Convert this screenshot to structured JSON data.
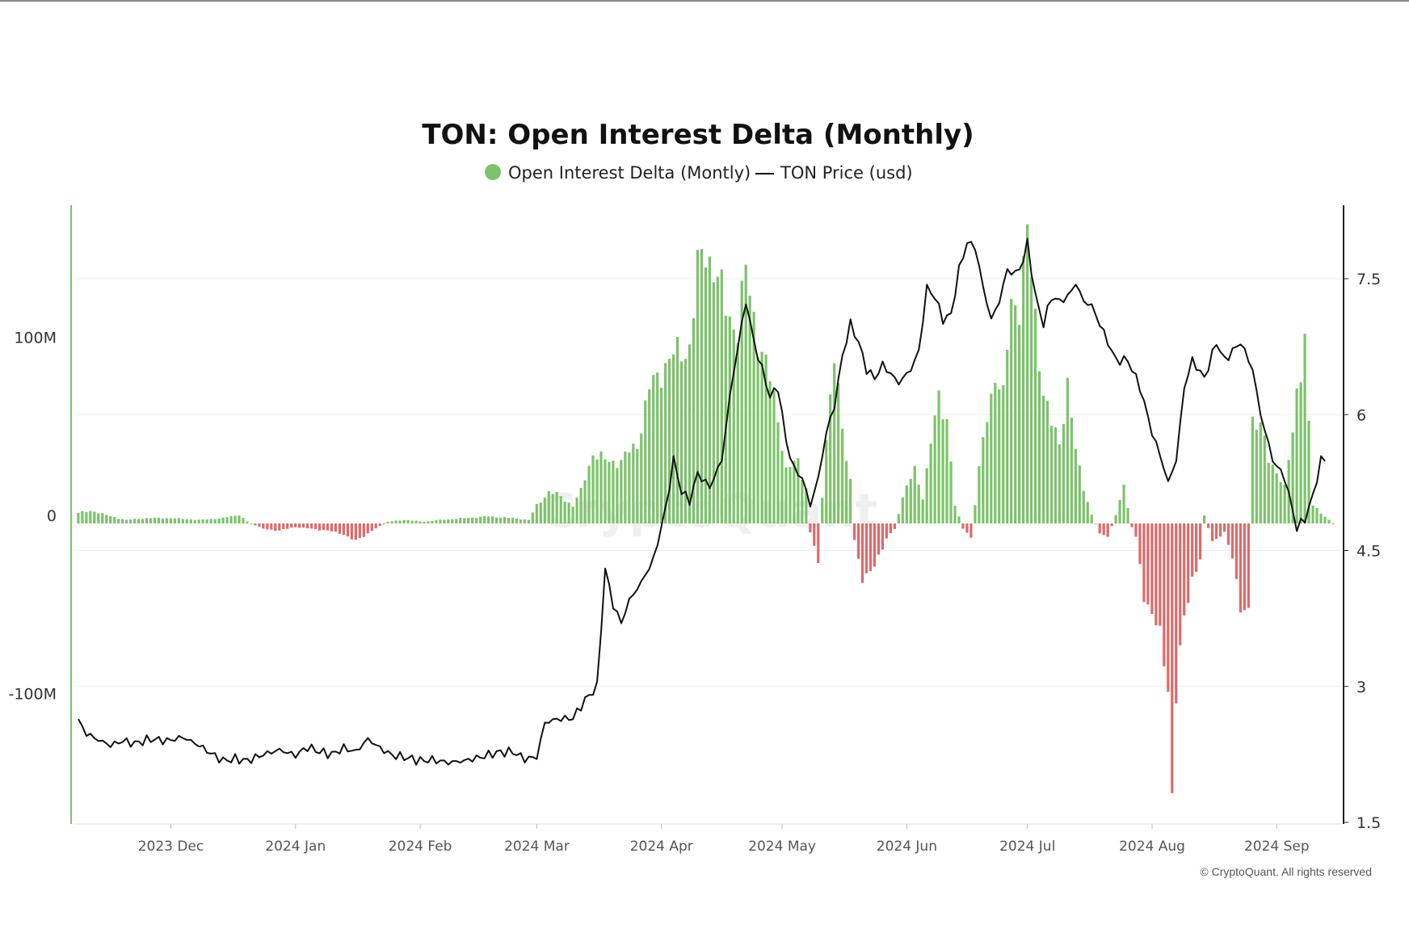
{
  "chart_data": {
    "type": "bar+line",
    "title": "TON: Open Interest Delta (Monthly)",
    "legend": [
      {
        "label": "Open Interest Delta (Montly)",
        "marker": "dot",
        "color": "#7cc36a"
      },
      {
        "label": "TON Price (usd)",
        "marker": "line",
        "color": "#111111"
      }
    ],
    "legend_position": "top-center",
    "x_start": "2023-11-08",
    "x_end": "2024-09-15",
    "x_ticks": [
      {
        "date": "2023-12-01",
        "label": "2023 Dec"
      },
      {
        "date": "2024-01-01",
        "label": "2024 Jan"
      },
      {
        "date": "2024-02-01",
        "label": "2024 Feb"
      },
      {
        "date": "2024-03-01",
        "label": "2024 Mar"
      },
      {
        "date": "2024-04-01",
        "label": "2024 Apr"
      },
      {
        "date": "2024-05-01",
        "label": "2024 May"
      },
      {
        "date": "2024-06-01",
        "label": "2024 Jun"
      },
      {
        "date": "2024-07-01",
        "label": "2024 Jul"
      },
      {
        "date": "2024-08-01",
        "label": "2024 Aug"
      },
      {
        "date": "2024-09-01",
        "label": "2024 Sep"
      }
    ],
    "left_axis": {
      "ylim": [
        -170,
        170
      ],
      "unit": "M",
      "ticks": [
        {
          "value": 100,
          "label": "100M"
        },
        {
          "value": 0,
          "label": "0"
        },
        {
          "value": -100,
          "label": "-100M"
        }
      ]
    },
    "right_axis": {
      "ylim": [
        1.5,
        8.3
      ],
      "ticks": [
        {
          "value": 7.5,
          "label": "7.5"
        },
        {
          "value": 6,
          "label": "6"
        },
        {
          "value": 4.5,
          "label": "4.5"
        },
        {
          "value": 3,
          "label": "3"
        },
        {
          "value": 1.5,
          "label": "1.5"
        }
      ]
    },
    "series": [
      {
        "name": "Open Interest Delta (Montly)",
        "axis": "left",
        "type": "bar",
        "color_positive": "#7cc36a",
        "color_negative": "#e06868",
        "anchors": [
          [
            "2023-11-08",
            6
          ],
          [
            "2023-11-12",
            7
          ],
          [
            "2023-11-16",
            4
          ],
          [
            "2023-11-20",
            2
          ],
          [
            "2023-11-25",
            3
          ],
          [
            "2023-12-01",
            3
          ],
          [
            "2023-12-08",
            2
          ],
          [
            "2023-12-14",
            3
          ],
          [
            "2023-12-18",
            5
          ],
          [
            "2023-12-20",
            1
          ],
          [
            "2023-12-24",
            -3
          ],
          [
            "2023-12-28",
            -4
          ],
          [
            "2024-01-01",
            -2
          ],
          [
            "2024-01-05",
            -3
          ],
          [
            "2024-01-09",
            -4
          ],
          [
            "2024-01-13",
            -6
          ],
          [
            "2024-01-16",
            -10
          ],
          [
            "2024-01-20",
            -4
          ],
          [
            "2024-01-24",
            1
          ],
          [
            "2024-01-28",
            2
          ],
          [
            "2024-02-02",
            1
          ],
          [
            "2024-02-06",
            2
          ],
          [
            "2024-02-12",
            3
          ],
          [
            "2024-02-18",
            4
          ],
          [
            "2024-02-24",
            3
          ],
          [
            "2024-02-28",
            2
          ],
          [
            "2024-03-01",
            10
          ],
          [
            "2024-03-04",
            18
          ],
          [
            "2024-03-07",
            15
          ],
          [
            "2024-03-10",
            10
          ],
          [
            "2024-03-12",
            18
          ],
          [
            "2024-03-15",
            40
          ],
          [
            "2024-03-18",
            35
          ],
          [
            "2024-03-22",
            35
          ],
          [
            "2024-03-26",
            45
          ],
          [
            "2024-03-29",
            75
          ],
          [
            "2024-04-02",
            90
          ],
          [
            "2024-04-05",
            95
          ],
          [
            "2024-04-08",
            100
          ],
          [
            "2024-04-10",
            140
          ],
          [
            "2024-04-12",
            155
          ],
          [
            "2024-04-14",
            145
          ],
          [
            "2024-04-17",
            120
          ],
          [
            "2024-04-20",
            110
          ],
          [
            "2024-04-22",
            140
          ],
          [
            "2024-04-25",
            105
          ],
          [
            "2024-04-28",
            80
          ],
          [
            "2024-04-30",
            60
          ],
          [
            "2024-05-02",
            30
          ],
          [
            "2024-05-05",
            35
          ],
          [
            "2024-05-07",
            20
          ],
          [
            "2024-05-08",
            -5
          ],
          [
            "2024-05-10",
            -20
          ],
          [
            "2024-05-12",
            50
          ],
          [
            "2024-05-14",
            95
          ],
          [
            "2024-05-16",
            50
          ],
          [
            "2024-05-18",
            25
          ],
          [
            "2024-05-19",
            -10
          ],
          [
            "2024-05-21",
            -30
          ],
          [
            "2024-05-24",
            -25
          ],
          [
            "2024-05-27",
            -8
          ],
          [
            "2024-05-29",
            -3
          ],
          [
            "2024-05-31",
            15
          ],
          [
            "2024-06-03",
            30
          ],
          [
            "2024-06-05",
            15
          ],
          [
            "2024-06-07",
            45
          ],
          [
            "2024-06-09",
            70
          ],
          [
            "2024-06-11",
            60
          ],
          [
            "2024-06-13",
            10
          ],
          [
            "2024-06-15",
            -3
          ],
          [
            "2024-06-17",
            -8
          ],
          [
            "2024-06-19",
            30
          ],
          [
            "2024-06-21",
            60
          ],
          [
            "2024-06-23",
            85
          ],
          [
            "2024-06-25",
            70
          ],
          [
            "2024-06-27",
            125
          ],
          [
            "2024-06-29",
            125
          ],
          [
            "2024-07-01",
            160
          ],
          [
            "2024-07-03",
            115
          ],
          [
            "2024-07-05",
            75
          ],
          [
            "2024-07-07",
            55
          ],
          [
            "2024-07-09",
            45
          ],
          [
            "2024-07-11",
            80
          ],
          [
            "2024-07-13",
            40
          ],
          [
            "2024-07-15",
            20
          ],
          [
            "2024-07-17",
            5
          ],
          [
            "2024-07-19",
            -5
          ],
          [
            "2024-07-21",
            -8
          ],
          [
            "2024-07-23",
            5
          ],
          [
            "2024-07-25",
            20
          ],
          [
            "2024-07-27",
            -2
          ],
          [
            "2024-07-28",
            -8
          ],
          [
            "2024-07-30",
            -40
          ],
          [
            "2024-08-01",
            -50
          ],
          [
            "2024-08-03",
            -65
          ],
          [
            "2024-08-05",
            -90
          ],
          [
            "2024-08-06",
            -150
          ],
          [
            "2024-08-07",
            -95
          ],
          [
            "2024-08-09",
            -55
          ],
          [
            "2024-08-11",
            -30
          ],
          [
            "2024-08-13",
            -20
          ],
          [
            "2024-08-14",
            5
          ],
          [
            "2024-08-16",
            -10
          ],
          [
            "2024-08-19",
            -5
          ],
          [
            "2024-08-21",
            -20
          ],
          [
            "2024-08-23",
            -45
          ],
          [
            "2024-08-25",
            -50
          ],
          [
            "2024-08-26",
            60
          ],
          [
            "2024-08-28",
            55
          ],
          [
            "2024-08-30",
            35
          ],
          [
            "2024-09-01",
            30
          ],
          [
            "2024-09-03",
            20
          ],
          [
            "2024-09-05",
            50
          ],
          [
            "2024-09-06",
            75
          ],
          [
            "2024-09-08",
            105
          ],
          [
            "2024-09-09",
            55
          ],
          [
            "2024-09-10",
            10
          ],
          [
            "2024-09-15",
            0
          ]
        ]
      },
      {
        "name": "TON Price (usd)",
        "axis": "right",
        "type": "line",
        "color": "#111111",
        "anchors": [
          [
            "2023-11-08",
            2.62
          ],
          [
            "2023-11-10",
            2.48
          ],
          [
            "2023-11-13",
            2.41
          ],
          [
            "2023-11-16",
            2.35
          ],
          [
            "2023-11-19",
            2.4
          ],
          [
            "2023-11-22",
            2.37
          ],
          [
            "2023-11-26",
            2.42
          ],
          [
            "2023-11-30",
            2.4
          ],
          [
            "2023-12-04",
            2.44
          ],
          [
            "2023-12-08",
            2.35
          ],
          [
            "2023-12-11",
            2.26
          ],
          [
            "2023-12-14",
            2.18
          ],
          [
            "2023-12-17",
            2.2
          ],
          [
            "2023-12-20",
            2.18
          ],
          [
            "2023-12-24",
            2.25
          ],
          [
            "2023-12-28",
            2.3
          ],
          [
            "2024-01-01",
            2.24
          ],
          [
            "2024-01-04",
            2.33
          ],
          [
            "2024-01-07",
            2.28
          ],
          [
            "2024-01-10",
            2.25
          ],
          [
            "2024-01-13",
            2.32
          ],
          [
            "2024-01-16",
            2.28
          ],
          [
            "2024-01-19",
            2.42
          ],
          [
            "2024-01-22",
            2.32
          ],
          [
            "2024-01-25",
            2.24
          ],
          [
            "2024-01-28",
            2.22
          ],
          [
            "2024-02-01",
            2.18
          ],
          [
            "2024-02-04",
            2.19
          ],
          [
            "2024-02-08",
            2.16
          ],
          [
            "2024-02-12",
            2.18
          ],
          [
            "2024-02-16",
            2.22
          ],
          [
            "2024-02-20",
            2.27
          ],
          [
            "2024-02-24",
            2.28
          ],
          [
            "2024-02-27",
            2.2
          ],
          [
            "2024-03-01",
            2.22
          ],
          [
            "2024-03-03",
            2.6
          ],
          [
            "2024-03-06",
            2.64
          ],
          [
            "2024-03-10",
            2.65
          ],
          [
            "2024-03-13",
            2.85
          ],
          [
            "2024-03-16",
            3.0
          ],
          [
            "2024-03-18",
            4.3
          ],
          [
            "2024-03-20",
            3.9
          ],
          [
            "2024-03-22",
            3.7
          ],
          [
            "2024-03-24",
            3.95
          ],
          [
            "2024-03-27",
            4.15
          ],
          [
            "2024-03-30",
            4.4
          ],
          [
            "2024-04-02",
            4.95
          ],
          [
            "2024-04-04",
            5.5
          ],
          [
            "2024-04-06",
            5.15
          ],
          [
            "2024-04-08",
            5.05
          ],
          [
            "2024-04-10",
            5.35
          ],
          [
            "2024-04-13",
            5.2
          ],
          [
            "2024-04-16",
            5.5
          ],
          [
            "2024-04-18",
            6.2
          ],
          [
            "2024-04-20",
            6.75
          ],
          [
            "2024-04-22",
            7.25
          ],
          [
            "2024-04-24",
            6.8
          ],
          [
            "2024-04-26",
            6.5
          ],
          [
            "2024-04-28",
            6.2
          ],
          [
            "2024-04-30",
            6.3
          ],
          [
            "2024-05-02",
            5.7
          ],
          [
            "2024-05-04",
            5.4
          ],
          [
            "2024-05-06",
            5.3
          ],
          [
            "2024-05-08",
            5.0
          ],
          [
            "2024-05-10",
            5.3
          ],
          [
            "2024-05-12",
            5.8
          ],
          [
            "2024-05-14",
            6.1
          ],
          [
            "2024-05-16",
            6.65
          ],
          [
            "2024-05-18",
            7.0
          ],
          [
            "2024-05-20",
            6.8
          ],
          [
            "2024-05-22",
            6.5
          ],
          [
            "2024-05-24",
            6.4
          ],
          [
            "2024-05-26",
            6.55
          ],
          [
            "2024-05-28",
            6.45
          ],
          [
            "2024-05-30",
            6.35
          ],
          [
            "2024-06-02",
            6.5
          ],
          [
            "2024-06-04",
            6.7
          ],
          [
            "2024-06-06",
            7.4
          ],
          [
            "2024-06-08",
            7.3
          ],
          [
            "2024-06-10",
            7.05
          ],
          [
            "2024-06-12",
            7.1
          ],
          [
            "2024-06-14",
            7.6
          ],
          [
            "2024-06-16",
            7.9
          ],
          [
            "2024-06-18",
            7.85
          ],
          [
            "2024-06-20",
            7.4
          ],
          [
            "2024-06-22",
            7.05
          ],
          [
            "2024-06-24",
            7.25
          ],
          [
            "2024-06-26",
            7.6
          ],
          [
            "2024-06-28",
            7.55
          ],
          [
            "2024-06-30",
            7.7
          ],
          [
            "2024-07-01",
            7.9
          ],
          [
            "2024-07-03",
            7.3
          ],
          [
            "2024-07-05",
            7.0
          ],
          [
            "2024-07-07",
            7.3
          ],
          [
            "2024-07-09",
            7.25
          ],
          [
            "2024-07-11",
            7.3
          ],
          [
            "2024-07-13",
            7.45
          ],
          [
            "2024-07-15",
            7.25
          ],
          [
            "2024-07-17",
            7.2
          ],
          [
            "2024-07-20",
            6.9
          ],
          [
            "2024-07-23",
            6.6
          ],
          [
            "2024-07-26",
            6.6
          ],
          [
            "2024-07-29",
            6.3
          ],
          [
            "2024-08-01",
            5.8
          ],
          [
            "2024-08-03",
            5.55
          ],
          [
            "2024-08-05",
            5.25
          ],
          [
            "2024-08-07",
            5.5
          ],
          [
            "2024-08-09",
            6.3
          ],
          [
            "2024-08-11",
            6.6
          ],
          [
            "2024-08-14",
            6.4
          ],
          [
            "2024-08-17",
            6.8
          ],
          [
            "2024-08-19",
            6.6
          ],
          [
            "2024-08-21",
            6.7
          ],
          [
            "2024-08-23",
            6.8
          ],
          [
            "2024-08-26",
            6.5
          ],
          [
            "2024-08-28",
            6.0
          ],
          [
            "2024-08-31",
            5.5
          ],
          [
            "2024-09-03",
            5.3
          ],
          [
            "2024-09-06",
            4.75
          ],
          [
            "2024-09-08",
            4.85
          ],
          [
            "2024-09-10",
            5.1
          ],
          [
            "2024-09-12",
            5.5
          ],
          [
            "2024-09-13",
            5.5
          ]
        ]
      }
    ],
    "watermark": "CryptoQuant",
    "credit": "© CryptoQuant. All rights reserved"
  }
}
